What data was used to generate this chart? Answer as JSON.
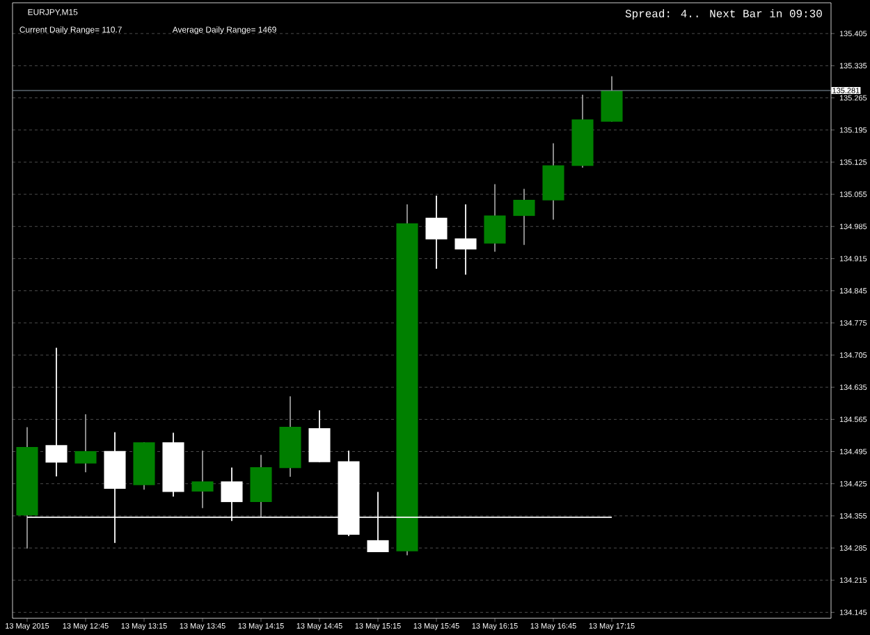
{
  "chart_data": {
    "type": "candlestick",
    "title": "EURJPY,M15",
    "annotations": [
      "Current Daily Range= 110.7",
      "Average Daily Range= 1469",
      "Spread: 4.. Next Bar in 09:30"
    ],
    "categories": [
      "13 May 2015",
      null,
      "13 May 12:45",
      null,
      "13 May 13:15",
      null,
      "13 May 13:45",
      null,
      "13 May 14:15",
      null,
      "13 May 14:45",
      null,
      "13 May 15:15",
      null,
      "13 May 15:45",
      null,
      "13 May 16:15",
      null,
      "13 May 16:45",
      null,
      "13 May 17:15",
      null,
      null,
      null,
      null,
      null,
      null,
      null
    ],
    "ohlc": [
      [
        134.356,
        134.548,
        134.284,
        134.505
      ],
      [
        134.509,
        134.721,
        134.441,
        134.471
      ],
      [
        134.469,
        134.576,
        134.45,
        134.496
      ],
      [
        134.496,
        134.537,
        134.296,
        134.414
      ],
      [
        134.422,
        134.515,
        134.412,
        134.515
      ],
      [
        134.515,
        134.536,
        134.397,
        134.407
      ],
      [
        134.408,
        134.497,
        134.372,
        134.43
      ],
      [
        134.43,
        134.46,
        134.344,
        134.385
      ],
      [
        134.385,
        134.488,
        134.352,
        134.461
      ],
      [
        134.459,
        134.615,
        134.44,
        134.549
      ],
      [
        134.546,
        134.585,
        134.472,
        134.472
      ],
      [
        134.474,
        134.497,
        134.311,
        134.314
      ],
      [
        134.302,
        134.407,
        134.276,
        134.276
      ],
      [
        134.278,
        135.033,
        134.269,
        134.992
      ],
      [
        135.004,
        135.052,
        134.893,
        134.957
      ],
      [
        134.959,
        135.033,
        134.88,
        134.935
      ],
      [
        134.948,
        135.077,
        134.93,
        135.009
      ],
      [
        135.008,
        135.067,
        134.945,
        135.043
      ],
      [
        135.042,
        135.166,
        135.0,
        135.118
      ],
      [
        135.117,
        135.272,
        135.113,
        135.218
      ],
      [
        135.213,
        135.312,
        135.213,
        135.281
      ],
      null,
      null,
      null,
      null,
      null,
      null,
      null
    ],
    "colors": [
      "#008000",
      "#ffffff",
      "#008000",
      "#ffffff",
      "#008000",
      "#ffffff",
      "#008000",
      "#ffffff",
      "#008000",
      "#008000",
      "#ffffff",
      "#ffffff",
      "#ffffff",
      "#008000",
      "#ffffff",
      "#ffffff",
      "#008000",
      "#008000",
      "#008000",
      "#008000",
      "#008000",
      null,
      null,
      null,
      null,
      null,
      null,
      null
    ],
    "series": [
      {
        "type": "line",
        "values": [
          134.352,
          134.352,
          134.352,
          134.352,
          134.352,
          134.352,
          134.352,
          134.352,
          134.352,
          134.352,
          134.352,
          134.352,
          134.352,
          134.352,
          134.352,
          134.352,
          134.352,
          134.352,
          134.352,
          134.352,
          134.352,
          null,
          null,
          null,
          null,
          null,
          null,
          null
        ],
        "color": "#ffffff"
      }
    ],
    "ylim": [
      134.132,
      135.472
    ],
    "yticks": [
      134.145,
      134.215,
      134.285,
      134.355,
      134.425,
      134.495,
      134.565,
      134.635,
      134.705,
      134.775,
      134.845,
      134.915,
      134.985,
      135.055,
      135.125,
      135.195,
      135.265,
      135.335,
      135.405
    ],
    "grid": "y",
    "ref_lines": [
      {
        "axis": "y",
        "value": 135.281,
        "label": "135.281",
        "color": "#8a9aa8"
      }
    ]
  }
}
